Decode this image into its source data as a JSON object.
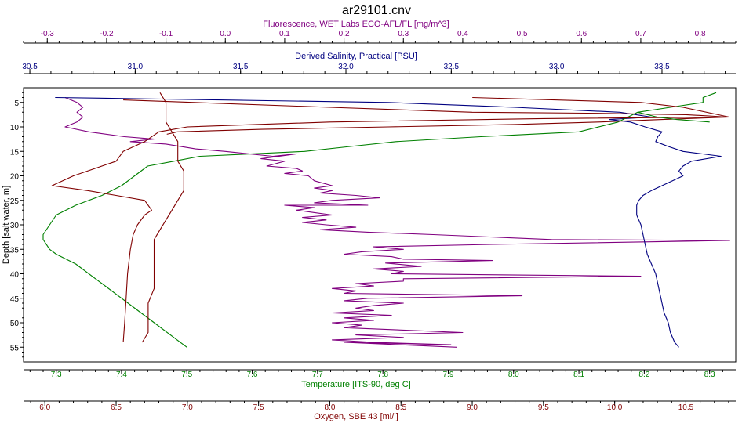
{
  "title": "ar29101.cnv",
  "chart_data": {
    "type": "line",
    "title": "ar29101.cnv",
    "grid": false,
    "legend": "none",
    "orientation": "profile",
    "y_axis": {
      "label": "Depth [salt water, m]",
      "range": [
        58,
        2
      ],
      "inverted": true,
      "ticks": [
        5,
        10,
        15,
        20,
        25,
        30,
        35,
        40,
        45,
        50,
        55
      ],
      "color": "#000000"
    },
    "x_axes": [
      {
        "id": "fluorescence",
        "label": "Fluorescence, WET Labs ECO-AFL/FL [mg/m^3]",
        "position": "top",
        "color": "#800080",
        "range": [
          -0.34,
          0.86
        ],
        "ticks": [
          -0.3,
          -0.2,
          -0.1,
          0.0,
          0.1,
          0.2,
          0.3,
          0.4,
          0.5,
          0.6,
          0.7,
          0.8
        ],
        "tick_labels": [
          "-0.3",
          "-0.2",
          "-0.1",
          "0.0",
          "0.1",
          "0.2",
          "0.3",
          "0.4",
          "0.5",
          "0.6",
          "0.7",
          "0.8"
        ]
      },
      {
        "id": "salinity",
        "label": "Derived Salinity, Practical [PSU]",
        "position": "top",
        "color": "#000080",
        "range": [
          30.47,
          33.85
        ],
        "ticks": [
          30.5,
          31.0,
          31.5,
          32.0,
          32.5,
          33.0,
          33.5
        ],
        "tick_labels": [
          "30.5",
          "31.0",
          "31.5",
          "32.0",
          "32.5",
          "33.0",
          "33.5"
        ]
      },
      {
        "id": "temperature",
        "label": "Temperature [ITS-90, deg C]",
        "position": "bottom",
        "color": "#008000",
        "range": [
          7.25,
          8.34
        ],
        "ticks": [
          7.3,
          7.4,
          7.5,
          7.6,
          7.7,
          7.8,
          7.9,
          8.0,
          8.1,
          8.2,
          8.3
        ],
        "tick_labels": [
          "7.3",
          "7.4",
          "7.5",
          "7.6",
          "7.7",
          "7.8",
          "7.9",
          "8.0",
          "8.1",
          "8.2",
          "8.3"
        ]
      },
      {
        "id": "oxygen",
        "label": "Oxygen, SBE 43 [ml/l]",
        "position": "bottom",
        "color": "#800000",
        "range": [
          5.85,
          10.85
        ],
        "ticks": [
          6.0,
          6.5,
          7.0,
          7.5,
          8.0,
          8.5,
          9.0,
          9.5,
          10.0,
          10.5
        ],
        "tick_labels": [
          "6.0",
          "6.5",
          "7.0",
          "7.5",
          "8.0",
          "8.5",
          "9.0",
          "9.5",
          "10.0",
          "10.5"
        ]
      }
    ],
    "series": [
      {
        "axis": "fluorescence",
        "color": "#800080",
        "points": [
          [
            -0.27,
            4
          ],
          [
            -0.25,
            5
          ],
          [
            -0.24,
            6
          ],
          [
            -0.25,
            7
          ],
          [
            -0.24,
            8
          ],
          [
            -0.25,
            9
          ],
          [
            -0.27,
            10
          ],
          [
            -0.23,
            11
          ],
          [
            -0.17,
            12
          ],
          [
            -0.12,
            12.5
          ],
          [
            -0.16,
            13
          ],
          [
            -0.1,
            13.5
          ],
          [
            -0.05,
            14.5
          ],
          [
            0.0,
            15
          ],
          [
            0.04,
            15.5
          ],
          [
            0.08,
            16
          ],
          [
            0.12,
            15.5
          ],
          [
            0.06,
            16.5
          ],
          [
            0.1,
            17
          ],
          [
            0.07,
            18
          ],
          [
            0.12,
            18.5
          ],
          [
            0.13,
            19
          ],
          [
            0.1,
            19.5
          ],
          [
            0.14,
            20
          ],
          [
            0.15,
            21
          ],
          [
            0.18,
            22
          ],
          [
            0.15,
            22.5
          ],
          [
            0.18,
            23
          ],
          [
            0.16,
            23.5
          ],
          [
            0.22,
            24
          ],
          [
            0.26,
            24.5
          ],
          [
            0.18,
            25
          ],
          [
            0.15,
            25.5
          ],
          [
            0.24,
            26
          ],
          [
            0.1,
            26
          ],
          [
            0.15,
            26.5
          ],
          [
            0.12,
            27
          ],
          [
            0.15,
            27.5
          ],
          [
            0.18,
            28
          ],
          [
            0.13,
            28.5
          ],
          [
            0.17,
            29
          ],
          [
            0.13,
            29.5
          ],
          [
            0.17,
            30
          ],
          [
            0.22,
            30.5
          ],
          [
            0.16,
            31
          ],
          [
            0.24,
            31.5
          ],
          [
            0.35,
            32
          ],
          [
            0.55,
            33
          ],
          [
            0.85,
            33.2
          ],
          [
            0.45,
            34
          ],
          [
            0.25,
            34.5
          ],
          [
            0.3,
            35
          ],
          [
            0.23,
            35.5
          ],
          [
            0.2,
            36
          ],
          [
            0.28,
            36.5
          ],
          [
            0.3,
            37
          ],
          [
            0.45,
            37.3
          ],
          [
            0.27,
            37.8
          ],
          [
            0.33,
            38.5
          ],
          [
            0.25,
            39
          ],
          [
            0.3,
            39.5
          ],
          [
            0.28,
            40
          ],
          [
            0.7,
            40.5
          ],
          [
            0.3,
            41
          ],
          [
            0.3,
            41.5
          ],
          [
            0.22,
            42
          ],
          [
            0.25,
            42.5
          ],
          [
            0.18,
            43
          ],
          [
            0.22,
            43.5
          ],
          [
            0.2,
            44
          ],
          [
            0.5,
            44.5
          ],
          [
            0.24,
            45
          ],
          [
            0.2,
            45.5
          ],
          [
            0.3,
            46
          ],
          [
            0.25,
            46.5
          ],
          [
            0.22,
            47
          ],
          [
            0.25,
            47.5
          ],
          [
            0.18,
            48
          ],
          [
            0.28,
            48.5
          ],
          [
            0.2,
            49
          ],
          [
            0.25,
            49.5
          ],
          [
            0.18,
            50
          ],
          [
            0.23,
            50.5
          ],
          [
            0.2,
            51
          ],
          [
            0.3,
            51.5
          ],
          [
            0.4,
            52
          ],
          [
            0.22,
            52.5
          ],
          [
            0.3,
            53
          ],
          [
            0.18,
            53.5
          ],
          [
            0.25,
            54
          ],
          [
            0.38,
            54.5
          ],
          [
            0.2,
            54
          ],
          [
            0.39,
            55
          ]
        ]
      },
      {
        "axis": "salinity",
        "color": "#000080",
        "points": [
          [
            30.62,
            4
          ],
          [
            32.2,
            5
          ],
          [
            32.8,
            6
          ],
          [
            33.3,
            7
          ],
          [
            33.45,
            8
          ],
          [
            33.25,
            8.5
          ],
          [
            33.35,
            9
          ],
          [
            33.42,
            10
          ],
          [
            33.5,
            11
          ],
          [
            33.48,
            12
          ],
          [
            33.47,
            13
          ],
          [
            33.53,
            14
          ],
          [
            33.6,
            15
          ],
          [
            33.78,
            16
          ],
          [
            33.64,
            17
          ],
          [
            33.6,
            18
          ],
          [
            33.58,
            19
          ],
          [
            33.6,
            20
          ],
          [
            33.55,
            21
          ],
          [
            33.5,
            22
          ],
          [
            33.45,
            23
          ],
          [
            33.41,
            24
          ],
          [
            33.39,
            25
          ],
          [
            33.38,
            26
          ],
          [
            33.38,
            27
          ],
          [
            33.38,
            28
          ],
          [
            33.39,
            29
          ],
          [
            33.4,
            30
          ],
          [
            33.41,
            32
          ],
          [
            33.42,
            34
          ],
          [
            33.43,
            36
          ],
          [
            33.45,
            38
          ],
          [
            33.47,
            40
          ],
          [
            33.48,
            42
          ],
          [
            33.49,
            44
          ],
          [
            33.5,
            46
          ],
          [
            33.51,
            48
          ],
          [
            33.53,
            50
          ],
          [
            33.54,
            52
          ],
          [
            33.56,
            54
          ],
          [
            33.58,
            55
          ]
        ]
      },
      {
        "axis": "temperature",
        "color": "#008000",
        "points": [
          [
            8.31,
            3
          ],
          [
            8.29,
            4
          ],
          [
            8.29,
            5
          ],
          [
            8.24,
            6
          ],
          [
            8.19,
            7
          ],
          [
            8.16,
            9
          ],
          [
            8.1,
            11
          ],
          [
            7.95,
            12
          ],
          [
            7.82,
            13
          ],
          [
            7.75,
            14
          ],
          [
            7.68,
            15
          ],
          [
            7.6,
            15.5
          ],
          [
            7.52,
            16
          ],
          [
            7.48,
            17
          ],
          [
            7.44,
            18
          ],
          [
            7.42,
            20
          ],
          [
            7.4,
            22
          ],
          [
            7.37,
            24
          ],
          [
            7.33,
            26
          ],
          [
            7.3,
            28
          ],
          [
            7.29,
            30
          ],
          [
            7.28,
            32
          ],
          [
            7.28,
            33
          ],
          [
            7.29,
            35
          ],
          [
            7.3,
            36
          ],
          [
            7.33,
            38
          ],
          [
            7.37,
            42
          ],
          [
            7.41,
            46
          ],
          [
            7.45,
            50
          ],
          [
            7.48,
            53
          ],
          [
            7.5,
            55
          ]
        ]
      },
      {
        "axis": "oxygen",
        "color": "#800000",
        "points": [
          [
            6.55,
            4.5
          ],
          [
            8.0,
            6
          ],
          [
            9.0,
            7
          ],
          [
            9.8,
            7.2
          ],
          [
            10.5,
            7.5
          ],
          [
            10.8,
            8
          ],
          [
            9.5,
            8.3
          ],
          [
            8.0,
            9
          ],
          [
            7.0,
            10
          ],
          [
            6.8,
            11
          ],
          [
            6.7,
            13
          ],
          [
            6.55,
            15
          ],
          [
            6.5,
            17
          ],
          [
            6.4,
            18
          ],
          [
            6.2,
            20
          ],
          [
            6.05,
            22
          ],
          [
            6.3,
            23
          ],
          [
            6.5,
            24
          ],
          [
            6.7,
            25
          ],
          [
            6.75,
            27
          ],
          [
            6.7,
            28
          ],
          [
            6.65,
            30
          ],
          [
            6.62,
            32
          ],
          [
            6.6,
            35
          ],
          [
            6.58,
            40
          ],
          [
            6.57,
            45
          ],
          [
            6.56,
            50
          ],
          [
            6.55,
            54
          ]
        ]
      },
      {
        "axis": "fluorescence",
        "color": "#800000",
        "points": [
          [
            -0.11,
            3
          ],
          [
            -0.1,
            5
          ],
          [
            -0.1,
            7
          ],
          [
            -0.1,
            9
          ],
          [
            -0.09,
            11
          ],
          [
            -0.08,
            13
          ],
          [
            -0.08,
            15
          ],
          [
            -0.08,
            17
          ],
          [
            -0.07,
            19
          ],
          [
            -0.07,
            21
          ],
          [
            -0.07,
            23
          ],
          [
            -0.08,
            25
          ],
          [
            -0.09,
            27
          ],
          [
            -0.1,
            29
          ],
          [
            -0.11,
            31
          ],
          [
            -0.12,
            33
          ],
          [
            -0.12,
            35
          ],
          [
            -0.12,
            37
          ],
          [
            -0.12,
            40
          ],
          [
            -0.12,
            43
          ],
          [
            -0.13,
            46
          ],
          [
            -0.13,
            49
          ],
          [
            -0.13,
            52
          ],
          [
            -0.14,
            54
          ]
        ]
      },
      {
        "axis": "salinity",
        "color": "#800000",
        "points": [
          [
            32.6,
            4
          ],
          [
            33.4,
            5
          ],
          [
            33.6,
            6
          ],
          [
            33.82,
            8
          ],
          [
            33.5,
            8.5
          ],
          [
            33.2,
            9
          ],
          [
            32.8,
            9.5
          ],
          [
            32.2,
            10
          ],
          [
            31.6,
            10.5
          ],
          [
            31.2,
            11
          ],
          [
            31.15,
            11.5
          ]
        ]
      },
      {
        "axis": "temperature",
        "color": "#008000",
        "points": [
          [
            8.19,
            7
          ],
          [
            8.22,
            8
          ],
          [
            8.25,
            8.5
          ],
          [
            8.3,
            9
          ]
        ]
      }
    ]
  }
}
